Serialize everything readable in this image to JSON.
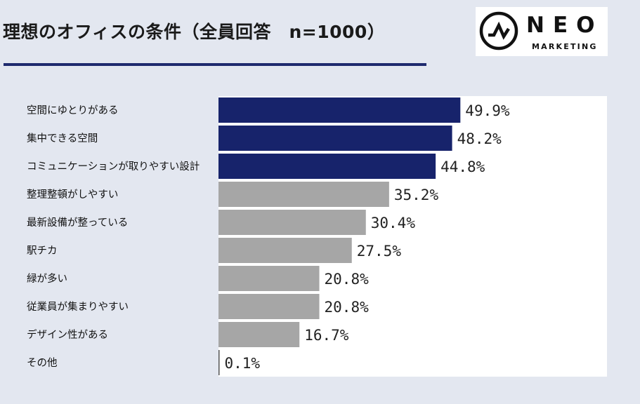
{
  "title": "理想のオフィスの条件（全員回答　n=1000）",
  "logo": {
    "word": "NEO",
    "sub": "MARKETING"
  },
  "colors": {
    "highlight": "#17236b",
    "normal": "#a6a6a6",
    "underline": "#1e2a6e"
  },
  "chart_data": {
    "type": "bar",
    "orientation": "horizontal",
    "categories": [
      "空間にゆとりがある",
      "集中できる空間",
      "コミュニケーションが取りやすい設計",
      "整理整頓がしやすい",
      "最新設備が整っている",
      "駅チカ",
      "緑が多い",
      "従業員が集まりやすい",
      "デザイン性がある",
      "その他"
    ],
    "values": [
      49.9,
      48.2,
      44.8,
      35.2,
      30.4,
      27.5,
      20.8,
      20.8,
      16.7,
      0.1
    ],
    "value_labels": [
      "49.9%",
      "48.2%",
      "44.8%",
      "35.2%",
      "30.4%",
      "27.5%",
      "20.8%",
      "20.8%",
      "16.7%",
      "0.1%"
    ],
    "highlighted_top": 3,
    "xlim": [
      0,
      50
    ],
    "grid": false,
    "legend": "none"
  }
}
